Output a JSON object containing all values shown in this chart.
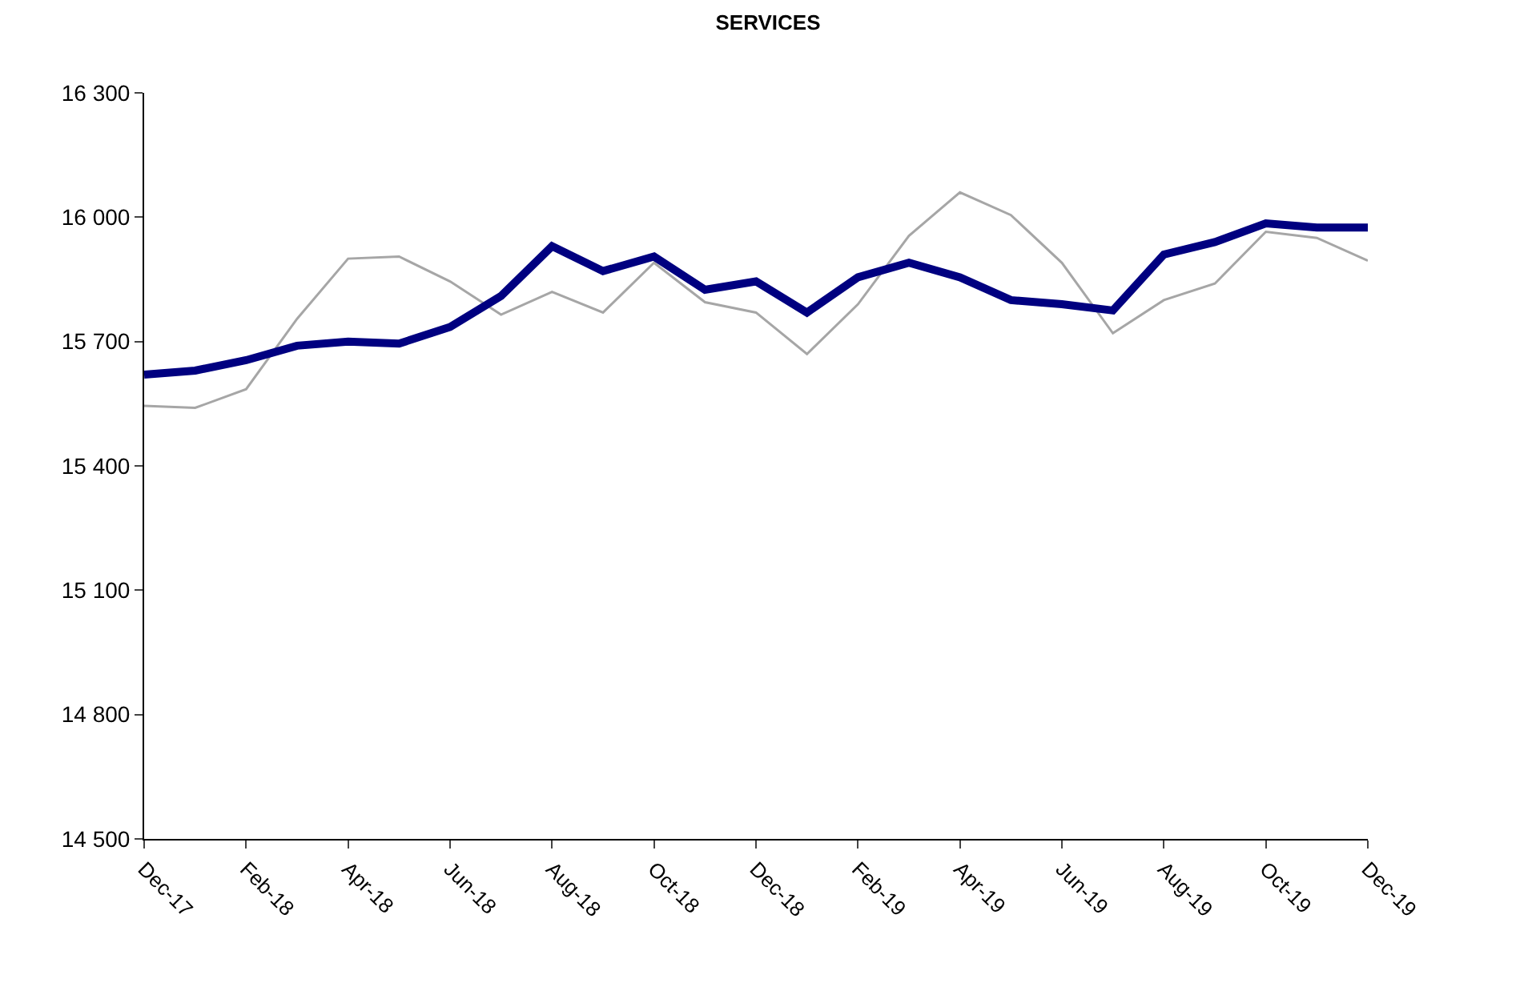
{
  "chart_data": {
    "type": "line",
    "title": "SERVICES",
    "categories": [
      "Dec-17",
      null,
      "Feb-18",
      null,
      "Apr-18",
      null,
      "Jun-18",
      null,
      "Aug-18",
      null,
      "Oct-18",
      null,
      "Dec-18",
      null,
      "Feb-19",
      null,
      "Apr-19",
      null,
      "Jun-19",
      null,
      "Aug-19",
      null,
      "Oct-19",
      null,
      "Dec-19"
    ],
    "series": [
      {
        "color": "#a6a6a6",
        "values": [
          15545,
          15540,
          15585,
          15755,
          15900,
          15905,
          15845,
          15765,
          15820,
          15770,
          15890,
          15795,
          15770,
          15670,
          15790,
          15955,
          16060,
          16005,
          15890,
          15720,
          15800,
          15840,
          15965,
          15950,
          15895
        ]
      },
      {
        "color": "#000080",
        "values": [
          15620,
          15630,
          15655,
          15690,
          15700,
          15695,
          15735,
          15810,
          15930,
          15870,
          15905,
          15825,
          15845,
          15770,
          15855,
          15890,
          15855,
          15800,
          15790,
          15775,
          15910,
          15940,
          15985,
          15975,
          15975
        ]
      }
    ],
    "ylim": [
      14500,
      16300
    ],
    "yticks": [
      {
        "value": 14500,
        "label": "14 500"
      },
      {
        "value": 14800,
        "label": "14 800"
      },
      {
        "value": 15100,
        "label": "15 100"
      },
      {
        "value": 15400,
        "label": "15 400"
      },
      {
        "value": 15700,
        "label": "15 700"
      },
      {
        "value": 16000,
        "label": "16 000"
      },
      {
        "value": 16300,
        "label": "16 300"
      }
    ],
    "marker": "none",
    "line_style": "solid"
  }
}
